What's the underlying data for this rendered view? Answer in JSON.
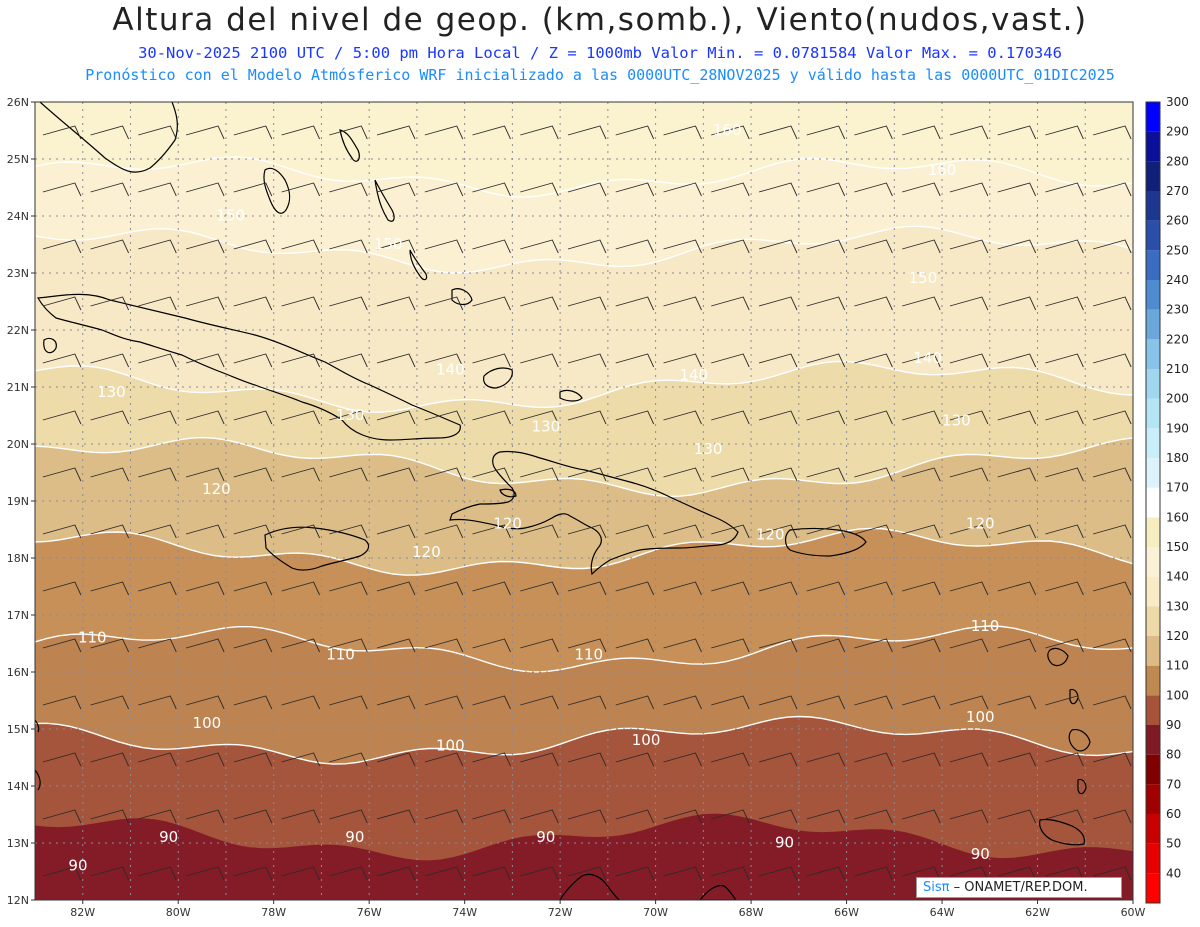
{
  "header": {
    "title": "Altura del nivel de geop. (km,somb.), Viento(nudos,vast.)",
    "subtitle_line1": "30-Nov-2025  2100 UTC / 5:00 pm Hora Local / Z = 1000mb  Valor Min. = 0.0781584  Valor Max. = 0.170346",
    "subtitle_line2": "Pronóstico con el Modelo Atmósferico WRF inicializado a las 0000UTC_28NOV2025 y válido hasta las  0000UTC_01DIC2025"
  },
  "map": {
    "lon_range": [
      -83,
      -60
    ],
    "lat_range": [
      12,
      26
    ],
    "lon_ticks": [
      "82W",
      "80W",
      "78W",
      "76W",
      "74W",
      "72W",
      "70W",
      "68W",
      "66W",
      "64W",
      "62W",
      "60W"
    ],
    "lat_ticks": [
      "12N",
      "13N",
      "14N",
      "15N",
      "16N",
      "17N",
      "18N",
      "19N",
      "20N",
      "21N",
      "22N",
      "23N",
      "24N",
      "25N",
      "26N"
    ],
    "contour_labels": [
      {
        "text": "160",
        "lon": -68.5,
        "lat": 25.5
      },
      {
        "text": "160",
        "lon": -64.0,
        "lat": 24.8
      },
      {
        "text": "150",
        "lon": -78.9,
        "lat": 24.0
      },
      {
        "text": "150",
        "lon": -75.6,
        "lat": 23.5
      },
      {
        "text": "150",
        "lon": -64.4,
        "lat": 22.9
      },
      {
        "text": "140",
        "lon": -74.3,
        "lat": 21.3
      },
      {
        "text": "140",
        "lon": -69.2,
        "lat": 21.2
      },
      {
        "text": "140",
        "lon": -64.3,
        "lat": 21.5
      },
      {
        "text": "130",
        "lon": -81.4,
        "lat": 20.9
      },
      {
        "text": "130",
        "lon": -76.4,
        "lat": 20.5
      },
      {
        "text": "130",
        "lon": -72.3,
        "lat": 20.3
      },
      {
        "text": "130",
        "lon": -68.9,
        "lat": 19.9
      },
      {
        "text": "130",
        "lon": -63.7,
        "lat": 20.4
      },
      {
        "text": "120",
        "lon": -79.2,
        "lat": 19.2
      },
      {
        "text": "120",
        "lon": -73.1,
        "lat": 18.6
      },
      {
        "text": "120",
        "lon": -74.8,
        "lat": 18.1
      },
      {
        "text": "120",
        "lon": -67.6,
        "lat": 18.4
      },
      {
        "text": "120",
        "lon": -63.2,
        "lat": 18.6
      },
      {
        "text": "110",
        "lon": -81.8,
        "lat": 16.6
      },
      {
        "text": "110",
        "lon": -76.6,
        "lat": 16.3
      },
      {
        "text": "110",
        "lon": -71.4,
        "lat": 16.3
      },
      {
        "text": "110",
        "lon": -63.1,
        "lat": 16.8
      },
      {
        "text": "100",
        "lon": -79.4,
        "lat": 15.1
      },
      {
        "text": "100",
        "lon": -74.3,
        "lat": 14.7
      },
      {
        "text": "100",
        "lon": -70.2,
        "lat": 14.8
      },
      {
        "text": "100",
        "lon": -63.2,
        "lat": 15.2
      },
      {
        "text": "90",
        "lon": -80.2,
        "lat": 13.1
      },
      {
        "text": "90",
        "lon": -76.3,
        "lat": 13.1
      },
      {
        "text": "90",
        "lon": -72.3,
        "lat": 13.1
      },
      {
        "text": "90",
        "lon": -67.3,
        "lat": 13.0
      },
      {
        "text": "90",
        "lon": -63.2,
        "lat": 12.8
      },
      {
        "text": "90",
        "lon": -82.1,
        "lat": 12.6
      }
    ],
    "grid": "dotted",
    "overlays": [
      "coastlines",
      "wind-barbs",
      "geopotential-contours"
    ]
  },
  "colorbar": {
    "labels": [
      "40",
      "50",
      "60",
      "70",
      "80",
      "90",
      "100",
      "110",
      "120",
      "130",
      "140",
      "150",
      "160",
      "170",
      "180",
      "190",
      "200",
      "210",
      "220",
      "230",
      "240",
      "250",
      "260",
      "270",
      "280",
      "290",
      "300"
    ],
    "colors": [
      "#ff0000",
      "#e60000",
      "#c80000",
      "#a00000",
      "#800000",
      "#7f1a24",
      "#a6533a",
      "#bf8a52",
      "#ddbb86",
      "#eed9a9",
      "#f8ebc5",
      "#faf2d6",
      "#f6eec0",
      "#ffffff",
      "#ddf3fb",
      "#c7eef9",
      "#b4e5f5",
      "#a0d6ee",
      "#88c3e8",
      "#6aa8dc",
      "#4f8bd0",
      "#3a6cc2",
      "#2a4fa8",
      "#1d3790",
      "#102078",
      "#0b0f9a",
      "#0000ff"
    ]
  },
  "chart_data": {
    "type": "heatmap",
    "title": "Altura del nivel de geop. (km,somb.), Viento(nudos,vast.)",
    "variable": "geopotential height at 1000mb",
    "valid_time": "30-Nov-2025 2100 UTC",
    "value_min": 0.0781584,
    "value_max": 0.170346,
    "levels": [
      40,
      50,
      60,
      70,
      80,
      90,
      100,
      110,
      120,
      130,
      140,
      150,
      160,
      170,
      180,
      190,
      200,
      210,
      220,
      230,
      240,
      250,
      260,
      270,
      280,
      290,
      300
    ],
    "bands": [
      {
        "min": 80,
        "max": 90,
        "color": "#7f1a24"
      },
      {
        "min": 90,
        "max": 100,
        "color": "#a6533a"
      },
      {
        "min": 100,
        "max": 110,
        "color": "#bf8a52"
      },
      {
        "min": 110,
        "max": 120,
        "color": "#ddbb86"
      },
      {
        "min": 120,
        "max": 130,
        "color": "#eed9a9"
      },
      {
        "min": 130,
        "max": 140,
        "color": "#f8ebc5"
      },
      {
        "min": 140,
        "max": 150,
        "color": "#faf2d6"
      },
      {
        "min": 150,
        "max": 160,
        "color": "#f6eec0"
      }
    ],
    "contour_levels": [
      90,
      100,
      110,
      120,
      130,
      140,
      150,
      160
    ],
    "wind": {
      "direction": "easterly",
      "units": "nudos"
    }
  },
  "credit": {
    "brand": "Sisπ",
    "org": "– ONAMET/REP.DOM."
  }
}
